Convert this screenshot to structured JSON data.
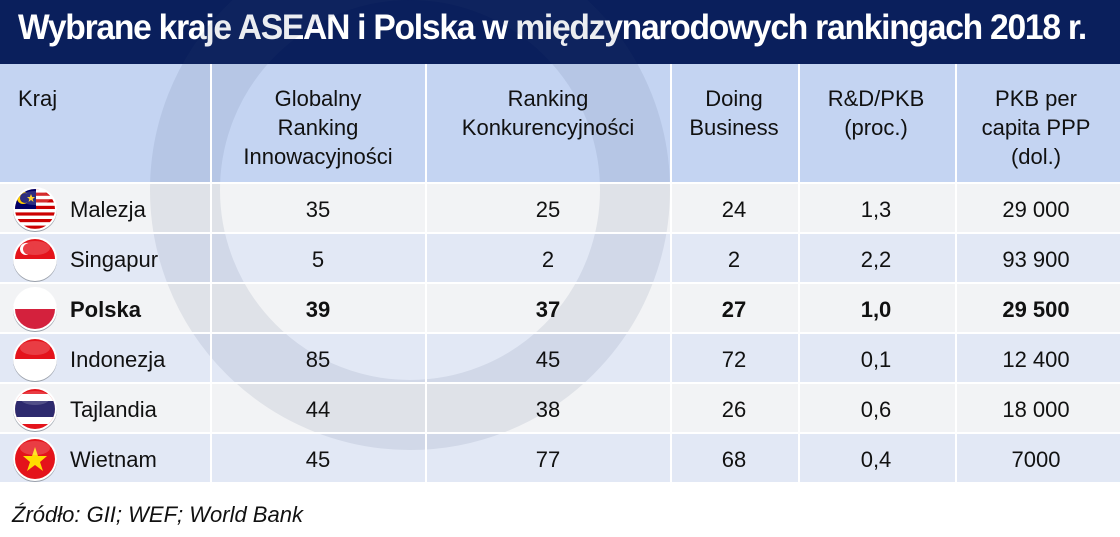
{
  "title": "Wybrane kraje ASEAN i Polska w międzynarodowych rankingach 2018 r.",
  "source": "Źródło: GII; WEF; World Bank",
  "colors": {
    "title_bg": "#0a1f5c",
    "header_bg": "#c4d4f2",
    "row_light": "#f2f3f5",
    "row_dark": "#e2e8f5"
  },
  "chart_data": {
    "type": "table",
    "columns": [
      {
        "lines": [
          "Kraj"
        ]
      },
      {
        "lines": [
          "Globalny",
          "Ranking",
          "Innowacyjności"
        ]
      },
      {
        "lines": [
          "Ranking",
          "Konkurencyjności"
        ]
      },
      {
        "lines": [
          "Doing",
          "Business"
        ]
      },
      {
        "lines": [
          "R&D/PKB",
          "(proc.)"
        ]
      },
      {
        "lines": [
          "PKB per",
          "capita PPP",
          "(dol.)"
        ]
      }
    ],
    "rows": [
      {
        "country": "Malezja",
        "flag": "malaysia-flag-icon",
        "values": [
          "35",
          "25",
          "24",
          "1,3",
          "29 000"
        ],
        "bold": false
      },
      {
        "country": "Singapur",
        "flag": "singapore-flag-icon",
        "values": [
          "5",
          "2",
          "2",
          "2,2",
          "93 900"
        ],
        "bold": false
      },
      {
        "country": "Polska",
        "flag": "poland-flag-icon",
        "values": [
          "39",
          "37",
          "27",
          "1,0",
          "29 500"
        ],
        "bold": true
      },
      {
        "country": "Indonezja",
        "flag": "indonesia-flag-icon",
        "values": [
          "85",
          "45",
          "72",
          "0,1",
          "12 400"
        ],
        "bold": false
      },
      {
        "country": "Tajlandia",
        "flag": "thailand-flag-icon",
        "values": [
          "44",
          "38",
          "26",
          "0,6",
          "18 000"
        ],
        "bold": false
      },
      {
        "country": "Wietnam",
        "flag": "vietnam-flag-icon",
        "values": [
          "45",
          "77",
          "68",
          "0,4",
          "7000"
        ],
        "bold": false
      }
    ]
  }
}
